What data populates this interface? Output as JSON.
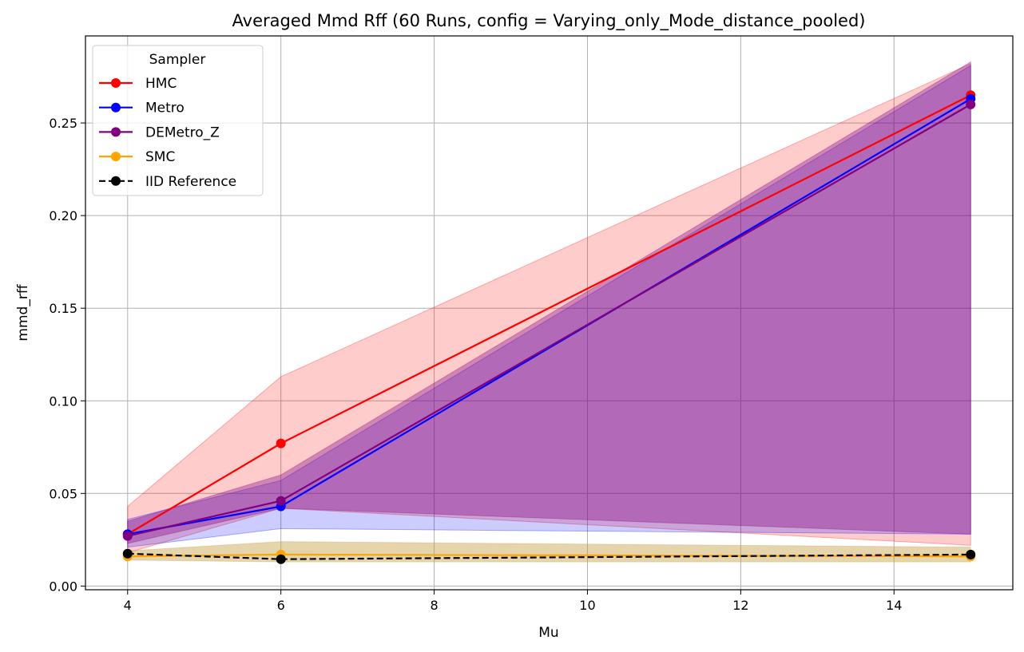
{
  "chart_data": {
    "type": "line",
    "title": "Averaged Mmd Rff (60 Runs, config = Varying_only_Mode_distance_pooled)",
    "xlabel": "Mu",
    "ylabel": "mmd_rff",
    "x": [
      4,
      6,
      15
    ],
    "xlim": [
      3.45,
      15.55
    ],
    "ylim": [
      -0.002,
      0.297
    ],
    "x_ticks": [
      "4",
      "6",
      "8",
      "10",
      "12",
      "14"
    ],
    "y_ticks": [
      "0.00",
      "0.05",
      "0.10",
      "0.15",
      "0.20",
      "0.25"
    ],
    "grid": true,
    "legend": {
      "title": "Sampler",
      "placement": "top-left"
    },
    "series": [
      {
        "name": "HMC",
        "color": "#ff0000",
        "band_color": "#ff0000",
        "band_opacity": 0.2,
        "dashed": false,
        "values": [
          0.028,
          0.077,
          0.265
        ],
        "lower": [
          0.018,
          0.042,
          0.022
        ],
        "upper": [
          0.043,
          0.113,
          0.282
        ]
      },
      {
        "name": "Metro",
        "color": "#0000ff",
        "band_color": "#0000ff",
        "band_opacity": 0.2,
        "dashed": false,
        "values": [
          0.028,
          0.043,
          0.263
        ],
        "lower": [
          0.021,
          0.031,
          0.028
        ],
        "upper": [
          0.036,
          0.057,
          0.281
        ]
      },
      {
        "name": "DEMetro_Z",
        "color": "#800080",
        "band_color": "#800080",
        "band_opacity": 0.35,
        "dashed": false,
        "values": [
          0.027,
          0.046,
          0.26
        ],
        "lower": [
          0.023,
          0.042,
          0.028
        ],
        "upper": [
          0.035,
          0.06,
          0.283
        ]
      },
      {
        "name": "SMC",
        "color": "#ffa500",
        "band_color": "#c8a04a",
        "band_opacity": 0.45,
        "dashed": false,
        "values": [
          0.016,
          0.017,
          0.016
        ],
        "lower": [
          0.014,
          0.013,
          0.013
        ],
        "upper": [
          0.019,
          0.024,
          0.021
        ]
      },
      {
        "name": "IID Reference",
        "color": "#000000",
        "band_color": null,
        "band_opacity": 0,
        "dashed": true,
        "values": [
          0.0175,
          0.0145,
          0.017
        ]
      }
    ]
  }
}
